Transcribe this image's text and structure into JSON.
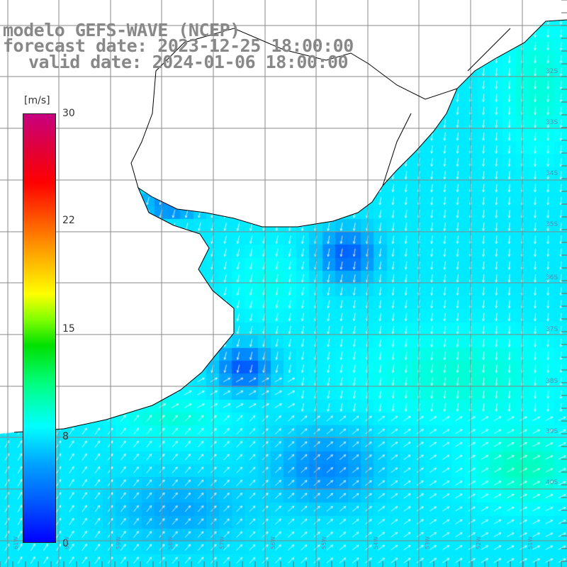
{
  "title": {
    "line1": "modelo GEFS-WAVE (NCEP)",
    "line2": "forecast date: 2023-12-25 18:00:00",
    "line3": "valid date: 2024-01-06 18:00:00"
  },
  "colorbar": {
    "unit": "[m/s]",
    "min": 0,
    "max": 30,
    "ticks": [
      "30",
      "22",
      "15",
      "8",
      "0"
    ],
    "tick_values": [
      30,
      22,
      15,
      8,
      0
    ]
  },
  "axis": {
    "lat_labels": [
      "32S",
      "33S",
      "34S",
      "35S",
      "36S",
      "37S",
      "38S",
      "39S",
      "40S"
    ],
    "lon_labels": [
      "61W",
      "60W",
      "59W",
      "58W",
      "57W",
      "56W",
      "55W",
      "54W",
      "53W",
      "52W",
      "51W"
    ]
  },
  "colors": {
    "land": "#ffffff",
    "coastline": "#000000",
    "grid": "#888888",
    "arrow": "#ffffff",
    "title_text": "#888888"
  },
  "map": {
    "field": "wind speed",
    "arrow_direction_general": "mostly toward south / south-southwest offshore, northeast-ward near the southern coast"
  }
}
